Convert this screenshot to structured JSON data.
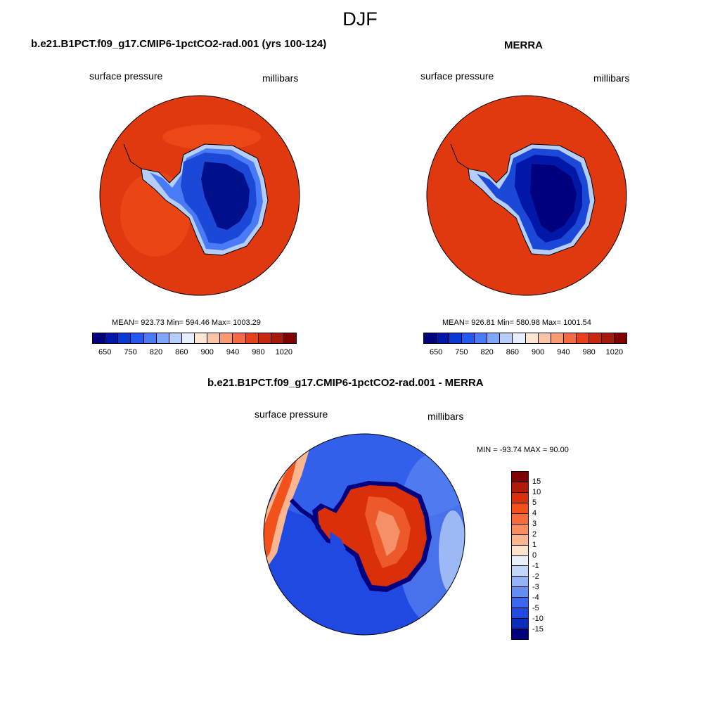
{
  "main_title": "DJF",
  "panels": [
    {
      "title": "b.e21.B1PCT.f09_g17.CMIP6-1pctCO2-rad.001 (yrs 100-124)",
      "left_label": "surface pressure",
      "right_label": "millibars",
      "stats": "MEAN= 923.73  Min= 594.46  Max= 1003.29"
    },
    {
      "title": "MERRA",
      "left_label": "surface pressure",
      "right_label": "millibars",
      "stats": "MEAN= 926.81  Min= 580.98  Max= 1001.54"
    },
    {
      "title": "b.e21.B1PCT.f09_g17.CMIP6-1pctCO2-rad.001 - MERRA",
      "left_label": "surface pressure",
      "right_label": "millibars",
      "stats": "MIN = -93.74 MAX =  90.00"
    }
  ],
  "colorbar_abs": {
    "colors": [
      "#00007f",
      "#0017a8",
      "#0a3ad6",
      "#2456f0",
      "#4a7bf7",
      "#7ea6fa",
      "#b4cdfb",
      "#e6efff",
      "#fde5d4",
      "#fcc4a6",
      "#f99a73",
      "#f46a43",
      "#e8401c",
      "#c72a10",
      "#a51a0a",
      "#7f0000"
    ],
    "labels": [
      "650",
      "750",
      "820",
      "860",
      "900",
      "940",
      "980",
      "1020"
    ]
  },
  "colorbar_diff": {
    "colors": [
      "#7f0000",
      "#b01a06",
      "#d9300a",
      "#f2511c",
      "#f76b3a",
      "#f98d5e",
      "#fbb58f",
      "#fde2cc",
      "#e8f0fc",
      "#c1d6fa",
      "#92b4f7",
      "#628ef3",
      "#3a68ee",
      "#1f49e0",
      "#0b2dbb",
      "#00007f"
    ],
    "labels": [
      "15",
      "10",
      "5",
      "4",
      "3",
      "2",
      "1",
      "0",
      "-1",
      "-2",
      "-3",
      "-4",
      "-5",
      "-10",
      "-15"
    ]
  },
  "colors": {
    "ocean_abs": "#e0380f",
    "ice_deep": "#00108a",
    "ice": "#1c48d8",
    "ice_light": "#4a7bf7",
    "diff_ocean": "#1c4ed8",
    "diff_land": "#d9300a"
  }
}
